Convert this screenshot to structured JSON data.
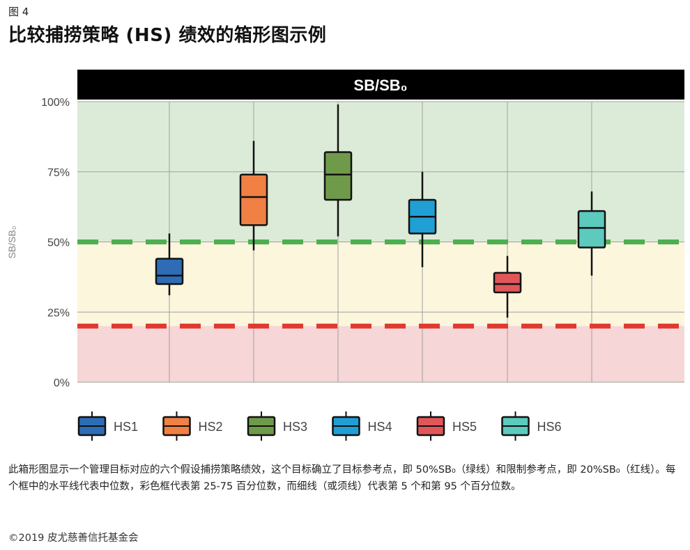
{
  "figure_label": "图 4",
  "title": "比较捕捞策略 (HS) 绩效的箱形图示例",
  "caption": "此箱形图显示一个管理目标对应的六个假设捕捞策略绩效，这个目标确立了目标参考点，即 50%SB₀（绿线）和限制参考点，即 20%SB₀（红线）。每个框中的水平线代表中位数，彩色框代表第 25-75 百分位数，而细线（或须线）代表第 5 个和第 95 个百分位数。",
  "copyright": "©2019 皮尤慈善信托基金会",
  "colors": {
    "header_bg": "#000000",
    "green_zone": "#dcebd8",
    "yellow_zone": "#fbf6dc",
    "red_zone": "#f6d6d6",
    "target_line": "#4caf50",
    "limit_line": "#e03a2f",
    "grid": "#a0a0a0",
    "axis_text": "#444444"
  },
  "chart_data": {
    "type": "boxplot",
    "header": "SB/SB₀",
    "ylabel": "SB/SB₀",
    "ylim": [
      0,
      100
    ],
    "yticks": [
      0,
      25,
      50,
      75,
      100
    ],
    "ytick_labels": [
      "0%",
      "25%",
      "50%",
      "75%",
      "100%"
    ],
    "zones": [
      {
        "from": 50,
        "to": 100,
        "color": "#dcebd8"
      },
      {
        "from": 20,
        "to": 50,
        "color": "#fbf6dc"
      },
      {
        "from": 0,
        "to": 20,
        "color": "#f6d6d6"
      }
    ],
    "reference_lines": [
      {
        "value": 50,
        "color": "#4caf50"
      },
      {
        "value": 20,
        "color": "#e03a2f"
      }
    ],
    "series": [
      {
        "name": "HS1",
        "color": "#2e6db5",
        "p5": 31,
        "p25": 35,
        "median": 38,
        "p75": 44,
        "p95": 53
      },
      {
        "name": "HS2",
        "color": "#f08043",
        "p5": 47,
        "p25": 56,
        "median": 66,
        "p75": 74,
        "p95": 86
      },
      {
        "name": "HS3",
        "color": "#6f9a4a",
        "p5": 52,
        "p25": 65,
        "median": 74,
        "p75": 82,
        "p95": 99
      },
      {
        "name": "HS4",
        "color": "#1f9fd4",
        "p5": 41,
        "p25": 53,
        "median": 59,
        "p75": 65,
        "p95": 75
      },
      {
        "name": "HS5",
        "color": "#e15759",
        "p5": 23,
        "p25": 32,
        "median": 35,
        "p75": 39,
        "p95": 45
      },
      {
        "name": "HS6",
        "color": "#5ccabd",
        "p5": 38,
        "p25": 48,
        "median": 55,
        "p75": 61,
        "p95": 68
      }
    ]
  }
}
